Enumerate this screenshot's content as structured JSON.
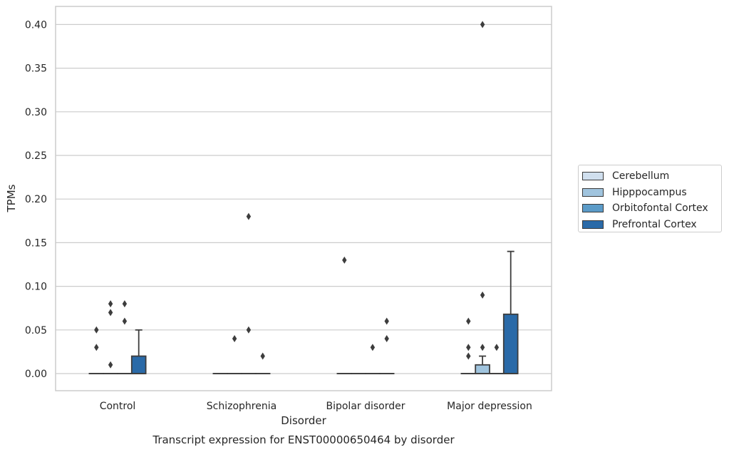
{
  "chart_data": {
    "type": "box",
    "title": "Transcript expression for ENST00000650464 by disorder",
    "xlabel": "Disorder",
    "ylabel": "TPMs",
    "ylim": [
      -0.02,
      0.42
    ],
    "yticks": [
      "0.00",
      "0.05",
      "0.10",
      "0.15",
      "0.20",
      "0.25",
      "0.30",
      "0.35",
      "0.40"
    ],
    "categories": [
      "Control",
      "Schizophrenia",
      "Bipolar disorder",
      "Major depression"
    ],
    "grid": true,
    "legend_position": "right",
    "series": [
      {
        "name": "Cerebellum",
        "color": "#d0dfee",
        "boxes": [
          {
            "q1": 0,
            "median": 0,
            "q3": 0,
            "whisker_low": 0,
            "whisker_high": 0,
            "outliers": [
              0.03,
              0.05
            ]
          },
          {
            "q1": 0,
            "median": 0,
            "q3": 0,
            "whisker_low": 0,
            "whisker_high": 0,
            "outliers": []
          },
          {
            "q1": 0,
            "median": 0,
            "q3": 0,
            "whisker_low": 0,
            "whisker_high": 0,
            "outliers": [
              0.13
            ]
          },
          {
            "q1": 0,
            "median": 0,
            "q3": 0,
            "whisker_low": 0,
            "whisker_high": 0,
            "outliers": [
              0.02,
              0.03,
              0.06
            ]
          }
        ]
      },
      {
        "name": "Hipppocampus",
        "color": "#a0c4de",
        "boxes": [
          {
            "q1": 0,
            "median": 0,
            "q3": 0,
            "whisker_low": 0,
            "whisker_high": 0,
            "outliers": [
              0.01,
              0.07,
              0.08
            ]
          },
          {
            "q1": 0,
            "median": 0,
            "q3": 0,
            "whisker_low": 0,
            "whisker_high": 0,
            "outliers": [
              0.04
            ]
          },
          {
            "q1": 0,
            "median": 0,
            "q3": 0,
            "whisker_low": 0,
            "whisker_high": 0,
            "outliers": []
          },
          {
            "q1": 0,
            "median": 0,
            "q3": 0.01,
            "whisker_low": 0,
            "whisker_high": 0.02,
            "outliers": [
              0.03,
              0.09,
              0.4
            ]
          }
        ]
      },
      {
        "name": "Orbitofontal Cortex",
        "color": "#5b9bc8",
        "boxes": [
          {
            "q1": 0,
            "median": 0,
            "q3": 0,
            "whisker_low": 0,
            "whisker_high": 0,
            "outliers": [
              0.06,
              0.08
            ]
          },
          {
            "q1": 0,
            "median": 0,
            "q3": 0,
            "whisker_low": 0,
            "whisker_high": 0,
            "outliers": [
              0.05,
              0.18
            ]
          },
          {
            "q1": 0,
            "median": 0,
            "q3": 0,
            "whisker_low": 0,
            "whisker_high": 0,
            "outliers": [
              0.03
            ]
          },
          {
            "q1": 0,
            "median": 0,
            "q3": 0,
            "whisker_low": 0,
            "whisker_high": 0,
            "outliers": [
              0.03
            ]
          }
        ]
      },
      {
        "name": "Prefrontal Cortex",
        "color": "#2a6aa8",
        "boxes": [
          {
            "q1": 0,
            "median": 0,
            "q3": 0.02,
            "whisker_low": 0,
            "whisker_high": 0.05,
            "outliers": []
          },
          {
            "q1": 0,
            "median": 0,
            "q3": 0,
            "whisker_low": 0,
            "whisker_high": 0,
            "outliers": [
              0.02
            ]
          },
          {
            "q1": 0,
            "median": 0,
            "q3": 0,
            "whisker_low": 0,
            "whisker_high": 0,
            "outliers": [
              0.04,
              0.06
            ]
          },
          {
            "q1": 0,
            "median": 0,
            "q3": 0.068,
            "whisker_low": 0,
            "whisker_high": 0.14,
            "outliers": []
          }
        ]
      }
    ]
  }
}
